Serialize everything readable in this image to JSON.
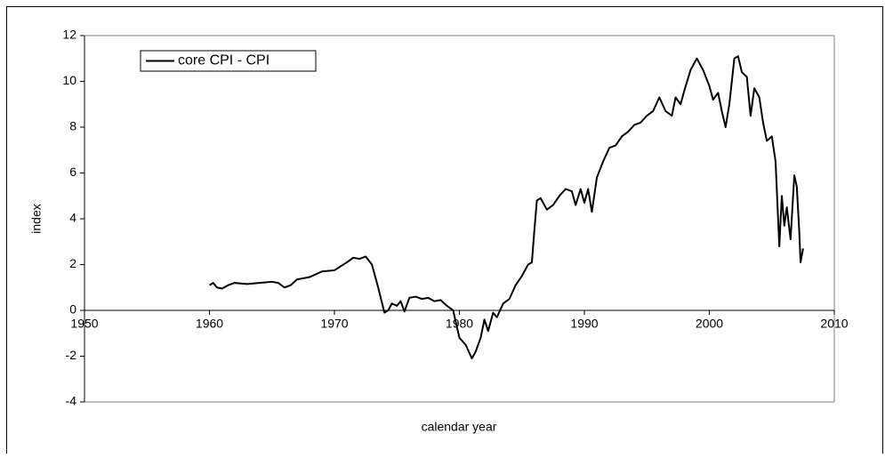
{
  "chart_data": {
    "type": "line",
    "xlabel": "calendar year",
    "ylabel": "index",
    "x": [
      1960,
      1960.3,
      1960.6,
      1961,
      1961.5,
      1962,
      1963,
      1964,
      1965,
      1965.5,
      1966,
      1966.5,
      1967,
      1968,
      1969,
      1970,
      1971,
      1971.5,
      1972,
      1972.5,
      1973,
      1973.5,
      1974,
      1974.3,
      1974.6,
      1975,
      1975.3,
      1975.6,
      1976,
      1976.5,
      1977,
      1977.5,
      1978,
      1978.5,
      1979,
      1979.5,
      1980,
      1980.5,
      1981,
      1981.3,
      1981.7,
      1982,
      1982.3,
      1982.7,
      1983,
      1983.5,
      1984,
      1984.5,
      1985,
      1985.5,
      1985.8,
      1986,
      1986.2,
      1986.5,
      1987,
      1987.5,
      1988,
      1988.5,
      1989,
      1989.3,
      1989.7,
      1990,
      1990.3,
      1990.6,
      1991,
      1991.5,
      1992,
      1992.5,
      1993,
      1993.5,
      1994,
      1994.5,
      1995,
      1995.5,
      1996,
      1996.5,
      1997,
      1997.3,
      1997.7,
      1998,
      1998.5,
      1999,
      1999.5,
      2000,
      2000.3,
      2000.7,
      2001,
      2001.3,
      2001.6,
      2002,
      2002.3,
      2002.6,
      2003,
      2003.3,
      2003.6,
      2004,
      2004.3,
      2004.6,
      2005,
      2005.3,
      2005.6,
      2005.8,
      2006,
      2006.2,
      2006.5,
      2006.8,
      2007,
      2007.2,
      2007.3,
      2007.5
    ],
    "series": [
      {
        "name": "core CPI - CPI",
        "color": "#000000",
        "values": [
          1.1,
          1.2,
          1.0,
          0.95,
          1.1,
          1.2,
          1.15,
          1.2,
          1.25,
          1.2,
          1.0,
          1.1,
          1.35,
          1.45,
          1.7,
          1.75,
          2.1,
          2.3,
          2.25,
          2.35,
          2.0,
          1.0,
          -0.1,
          0.0,
          0.3,
          0.2,
          0.4,
          -0.05,
          0.55,
          0.6,
          0.5,
          0.55,
          0.4,
          0.45,
          0.2,
          0.0,
          -1.2,
          -1.5,
          -2.1,
          -1.8,
          -1.2,
          -0.4,
          -0.9,
          -0.1,
          -0.3,
          0.3,
          0.5,
          1.1,
          1.5,
          2.0,
          2.1,
          3.5,
          4.8,
          4.9,
          4.4,
          4.6,
          5.0,
          5.3,
          5.2,
          4.6,
          5.3,
          4.7,
          5.3,
          4.3,
          5.8,
          6.5,
          7.1,
          7.2,
          7.6,
          7.8,
          8.1,
          8.2,
          8.5,
          8.7,
          9.3,
          8.7,
          8.5,
          9.3,
          9.0,
          9.6,
          10.5,
          11.0,
          10.5,
          9.8,
          9.2,
          9.5,
          8.7,
          8.0,
          9.0,
          11.0,
          11.1,
          10.4,
          10.2,
          8.5,
          9.7,
          9.3,
          8.2,
          7.4,
          7.6,
          6.5,
          2.8,
          5.0,
          3.7,
          4.5,
          3.1,
          5.9,
          5.4,
          3.4,
          2.1,
          2.7
        ]
      }
    ],
    "xlim": [
      1950,
      2010
    ],
    "xticks": [
      1950,
      1960,
      1970,
      1980,
      1990,
      2000,
      2010
    ],
    "ylim": [
      -4,
      12
    ],
    "yticks": [
      -4,
      -2,
      0,
      2,
      4,
      6,
      8,
      10,
      12
    ],
    "legend": "upper left"
  }
}
